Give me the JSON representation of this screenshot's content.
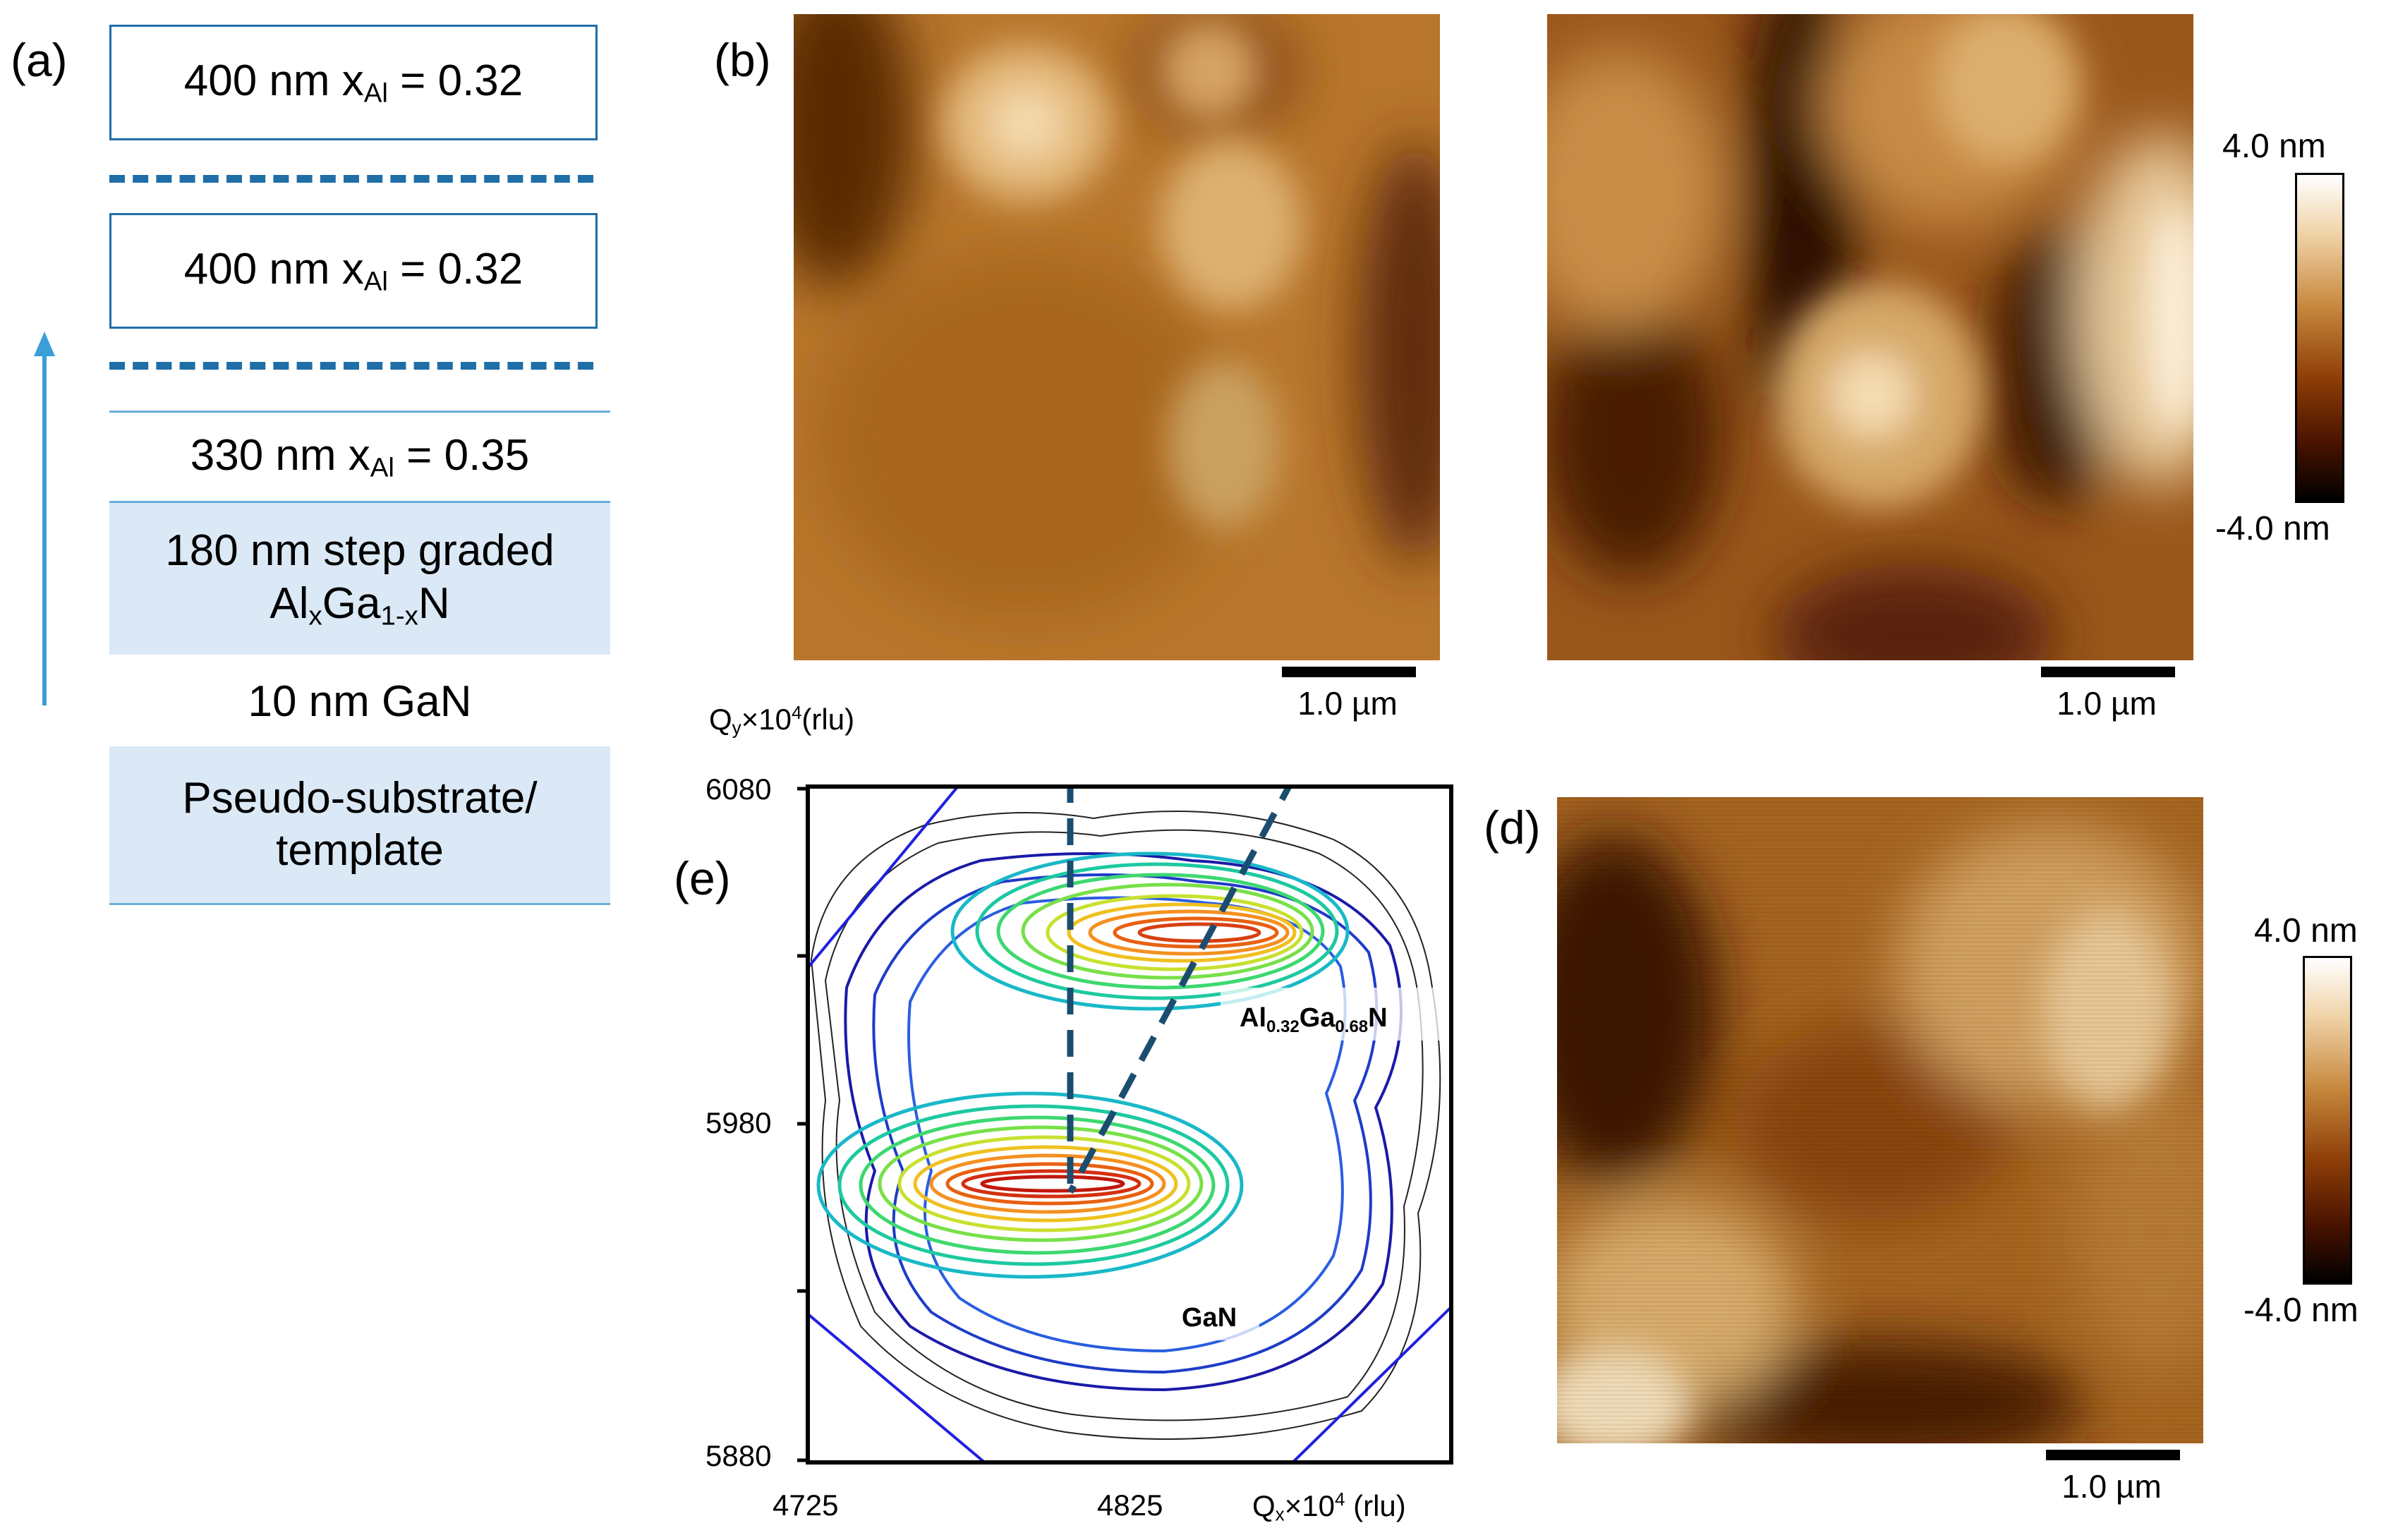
{
  "panel_a": {
    "label": "(a)",
    "layers": [
      {
        "text": "400 nm x",
        "sub": "Al",
        "rest": " = 0.32"
      },
      {
        "text": "400 nm x",
        "sub": "Al",
        "rest": " = 0.32"
      },
      {
        "text": "330 nm x",
        "sub": "Al",
        "rest": " = 0.35"
      }
    ],
    "graded_line1": "180 nm step graded",
    "graded_al": "Al",
    "graded_x": "x",
    "graded_ga": "Ga",
    "graded_1x": "1-x",
    "graded_n": "N",
    "gan_layer": "10 nm GaN",
    "substrate_line1": "Pseudo-substrate/",
    "substrate_line2": "template",
    "arrow_color": "#3a9fd8"
  },
  "panel_b": {
    "label": "(b)",
    "scale_bar_left": "1.0 µm",
    "scale_bar_right": "1.0 µm",
    "colorbar_max": "4.0 nm",
    "colorbar_min": "-4.0 nm"
  },
  "panel_d": {
    "label": "(d)",
    "scale_bar": "1.0 µm",
    "colorbar_max": "4.0 nm",
    "colorbar_min": "-4.0 nm"
  },
  "panel_e": {
    "label": "(e)",
    "y_axis_label": {
      "q": "Q",
      "sub": "y",
      "times": "×10",
      "sup": "4",
      "unit": "(rlu)"
    },
    "x_axis_label": {
      "q": "Q",
      "sub": "x",
      "times": "×10",
      "sup": "4",
      "unit": " (rlu)"
    },
    "y_ticks": [
      "6080",
      "5980",
      "5880"
    ],
    "x_ticks": [
      "4725",
      "4825"
    ],
    "peak_top": {
      "al": "Al",
      "s1": "0.32",
      "ga": "Ga",
      "s2": "0.68",
      "n": "N"
    },
    "peak_bottom": "GaN"
  },
  "chart_data": {
    "type": "contour",
    "xlabel": "Qx×10^4 (rlu)",
    "ylabel": "Qy×10^4(rlu)",
    "xlim": [
      4725,
      4900
    ],
    "ylim": [
      5880,
      6080
    ],
    "peaks": [
      {
        "name": "Al0.32Ga0.68N",
        "qx": 4850,
        "qy": 6032
      },
      {
        "name": "GaN",
        "qx": 4810,
        "qy": 5966
      }
    ]
  }
}
